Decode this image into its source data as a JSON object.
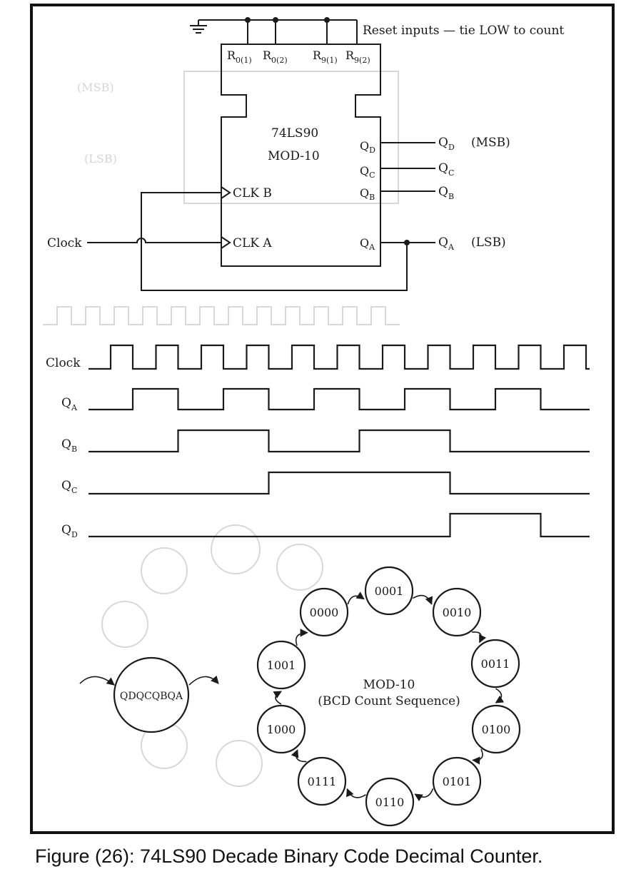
{
  "figure": {
    "caption": "Figure (26): 74LS90 Decade Binary Code Decimal Counter."
  },
  "schematic": {
    "reset_note": "Reset inputs — tie LOW to count",
    "reset_pins": [
      {
        "base": "R",
        "sub": "0(1)"
      },
      {
        "base": "R",
        "sub": "0(2)"
      },
      {
        "base": "R",
        "sub": "9(1)"
      },
      {
        "base": "R",
        "sub": "9(2)"
      }
    ],
    "chip_name": "74LS90",
    "chip_mode": "MOD-10",
    "clk_b": "CLK B",
    "clk_a": "CLK A",
    "clock_label": "Clock",
    "chip_outputs": [
      {
        "base": "Q",
        "sub": "D"
      },
      {
        "base": "Q",
        "sub": "C"
      },
      {
        "base": "Q",
        "sub": "B"
      },
      {
        "base": "Q",
        "sub": "A"
      }
    ],
    "outputs": [
      {
        "base": "Q",
        "sub": "D",
        "note": "(MSB)"
      },
      {
        "base": "Q",
        "sub": "C",
        "note": ""
      },
      {
        "base": "Q",
        "sub": "B",
        "note": ""
      },
      {
        "base": "Q",
        "sub": "A",
        "note": "(LSB)"
      }
    ]
  },
  "timing": {
    "clock_label": "Clock",
    "clock_pulses": 11,
    "signals": [
      {
        "base": "Q",
        "sub": "A",
        "levels": [
          0,
          1,
          0,
          1,
          0,
          1,
          0,
          1,
          0,
          1,
          0
        ]
      },
      {
        "base": "Q",
        "sub": "B",
        "levels": [
          0,
          0,
          1,
          1,
          0,
          0,
          1,
          1,
          0,
          0,
          0
        ]
      },
      {
        "base": "Q",
        "sub": "C",
        "levels": [
          0,
          0,
          0,
          0,
          1,
          1,
          1,
          1,
          0,
          0,
          0
        ]
      },
      {
        "base": "Q",
        "sub": "D",
        "levels": [
          0,
          0,
          0,
          0,
          0,
          0,
          0,
          0,
          1,
          1,
          0
        ]
      }
    ]
  },
  "state_diagram": {
    "title": "MOD-10",
    "subtitle": "(BCD Count Sequence)",
    "legend": "QDQCQBQA",
    "states": [
      "0000",
      "0001",
      "0010",
      "0011",
      "0100",
      "0101",
      "0110",
      "0111",
      "1000",
      "1001"
    ]
  }
}
